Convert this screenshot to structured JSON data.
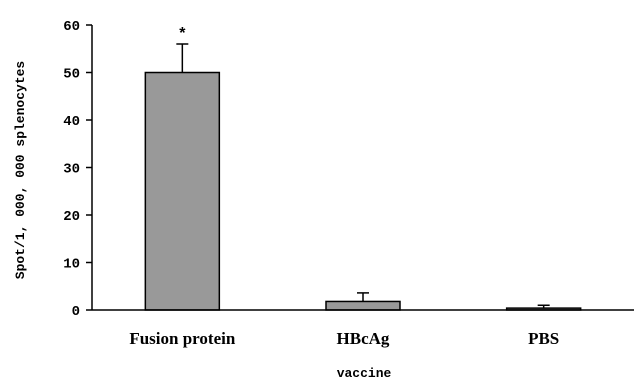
{
  "chart_data": {
    "type": "bar",
    "categories": [
      "Fusion protein",
      "HBcAg",
      "PBS"
    ],
    "values": [
      50,
      1.8,
      0.4
    ],
    "error": [
      6,
      1.8,
      0.6
    ],
    "annotations": [
      "*",
      "",
      ""
    ],
    "xlabel": "vaccine",
    "ylabel": "Spot/1, 000, 000 splenocytes",
    "ylim": [
      0,
      60
    ],
    "yticks": [
      0,
      10,
      20,
      30,
      40,
      50,
      60
    ],
    "grid": false,
    "colors": {
      "bar_fill": "#999999",
      "bar_stroke": "#000000",
      "axis": "#000000"
    }
  }
}
